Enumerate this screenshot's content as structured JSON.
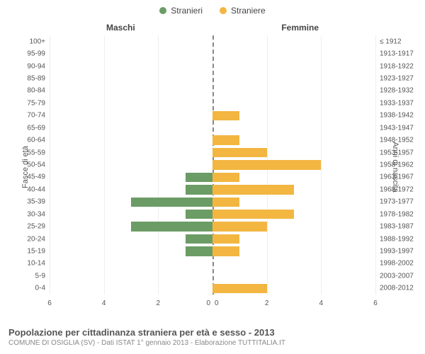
{
  "legend": {
    "male": {
      "label": "Stranieri",
      "color": "#6b9c66"
    },
    "female": {
      "label": "Straniere",
      "color": "#f2b641"
    }
  },
  "columns": {
    "left": "Maschi",
    "right": "Femmine"
  },
  "axis": {
    "left_label": "Fasce di età",
    "right_label": "Anni di nascita"
  },
  "xaxis": {
    "max": 6,
    "ticks": [
      6,
      4,
      2,
      0,
      0,
      2,
      4,
      6
    ]
  },
  "colors": {
    "grid": "#eeeeee",
    "center": "#888888",
    "bg": "#ffffff",
    "text": "#555555"
  },
  "rows": [
    {
      "age": "100+",
      "birth": "≤ 1912",
      "m": 0,
      "f": 0
    },
    {
      "age": "95-99",
      "birth": "1913-1917",
      "m": 0,
      "f": 0
    },
    {
      "age": "90-94",
      "birth": "1918-1922",
      "m": 0,
      "f": 0
    },
    {
      "age": "85-89",
      "birth": "1923-1927",
      "m": 0,
      "f": 0
    },
    {
      "age": "80-84",
      "birth": "1928-1932",
      "m": 0,
      "f": 0
    },
    {
      "age": "75-79",
      "birth": "1933-1937",
      "m": 0,
      "f": 0
    },
    {
      "age": "70-74",
      "birth": "1938-1942",
      "m": 0,
      "f": 1
    },
    {
      "age": "65-69",
      "birth": "1943-1947",
      "m": 0,
      "f": 0
    },
    {
      "age": "60-64",
      "birth": "1948-1952",
      "m": 0,
      "f": 1
    },
    {
      "age": "55-59",
      "birth": "1953-1957",
      "m": 0,
      "f": 2
    },
    {
      "age": "50-54",
      "birth": "1958-1962",
      "m": 0,
      "f": 4
    },
    {
      "age": "45-49",
      "birth": "1963-1967",
      "m": 1,
      "f": 1
    },
    {
      "age": "40-44",
      "birth": "1968-1972",
      "m": 1,
      "f": 3
    },
    {
      "age": "35-39",
      "birth": "1973-1977",
      "m": 3,
      "f": 1
    },
    {
      "age": "30-34",
      "birth": "1978-1982",
      "m": 1,
      "f": 3
    },
    {
      "age": "25-29",
      "birth": "1983-1987",
      "m": 3,
      "f": 2
    },
    {
      "age": "20-24",
      "birth": "1988-1992",
      "m": 1,
      "f": 1
    },
    {
      "age": "15-19",
      "birth": "1993-1997",
      "m": 1,
      "f": 1
    },
    {
      "age": "10-14",
      "birth": "1998-2002",
      "m": 0,
      "f": 0
    },
    {
      "age": "5-9",
      "birth": "2003-2007",
      "m": 0,
      "f": 0
    },
    {
      "age": "0-4",
      "birth": "2008-2012",
      "m": 0,
      "f": 2
    }
  ],
  "footer": {
    "title": "Popolazione per cittadinanza straniera per età e sesso - 2013",
    "subtitle": "COMUNE DI OSIGLIA (SV) - Dati ISTAT 1° gennaio 2013 - Elaborazione TUTTITALIA.IT"
  }
}
